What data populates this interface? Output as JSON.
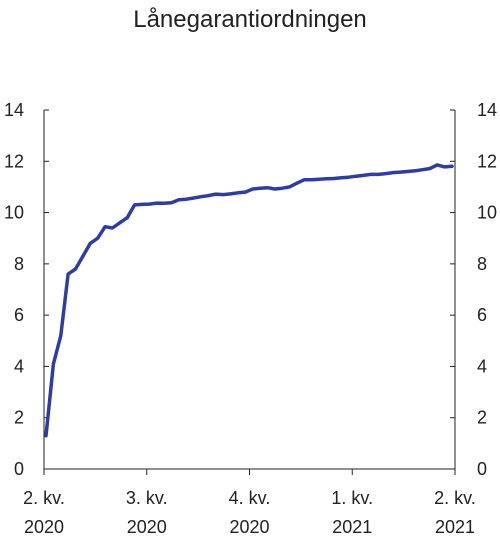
{
  "chart_data": {
    "type": "line",
    "title": "Lånegarantiordningen",
    "xlabel": "",
    "ylabel": "",
    "ylim": [
      0,
      14
    ],
    "yticks": [
      0,
      2,
      4,
      6,
      8,
      10,
      12,
      14
    ],
    "y_axis_both_sides": true,
    "grid": false,
    "x_tick_labels": [
      [
        "2. kv.",
        "2020"
      ],
      [
        "3. kv.",
        "2020"
      ],
      [
        "4. kv.",
        "2020"
      ],
      [
        "1. kv.",
        "2021"
      ],
      [
        "2. kv.",
        "2021"
      ]
    ],
    "series": [
      {
        "color": "#2f3e9e",
        "values": [
          1.3,
          4.1,
          5.2,
          7.6,
          7.8,
          8.3,
          8.8,
          9.0,
          9.45,
          9.4,
          9.6,
          9.8,
          10.3,
          10.32,
          10.33,
          10.37,
          10.36,
          10.38,
          10.5,
          10.52,
          10.57,
          10.62,
          10.66,
          10.72,
          10.7,
          10.73,
          10.77,
          10.8,
          10.92,
          10.95,
          10.97,
          10.92,
          10.95,
          11.0,
          11.15,
          11.28,
          11.28,
          11.3,
          11.32,
          11.33,
          11.36,
          11.38,
          11.42,
          11.45,
          11.49,
          11.49,
          11.52,
          11.56,
          11.58,
          11.6,
          11.63,
          11.67,
          11.72,
          11.86,
          11.78,
          11.81
        ]
      }
    ]
  }
}
